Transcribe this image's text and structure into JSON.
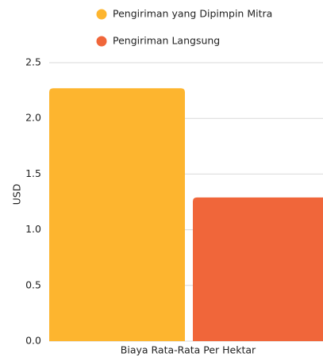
{
  "chart_data": {
    "type": "bar",
    "y_label": "USD",
    "categories": [
      "Biaya Rata-Rata Per Hektar"
    ],
    "series": [
      {
        "name": "Pengiriman yang Dipimpin Mitra",
        "color": "#fdb52f",
        "values": [
          2.27
        ]
      },
      {
        "name": "Pengiriman Langsung",
        "color": "#f0663a",
        "values": [
          1.29
        ]
      }
    ],
    "ylim": [
      0,
      2.5
    ],
    "yticks": [
      {
        "value": 0,
        "label": "0.0"
      },
      0.5,
      {
        "value": 1,
        "label": "1.0"
      },
      1.5,
      {
        "value": 2,
        "label": "2.0"
      },
      2.5
    ],
    "grid": true
  }
}
